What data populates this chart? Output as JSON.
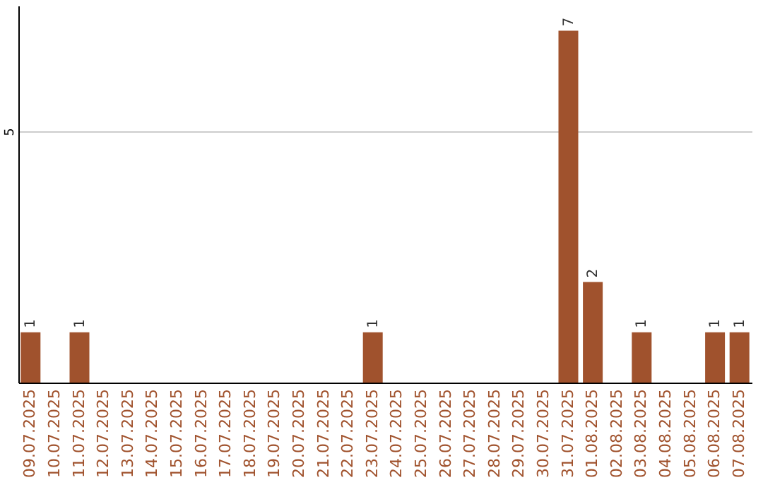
{
  "chart_data": {
    "type": "bar",
    "categories": [
      "09.07.2025",
      "10.07.2025",
      "11.07.2025",
      "12.07.2025",
      "13.07.2025",
      "14.07.2025",
      "15.07.2025",
      "16.07.2025",
      "17.07.2025",
      "18.07.2025",
      "19.07.2025",
      "20.07.2025",
      "21.07.2025",
      "22.07.2025",
      "23.07.2025",
      "24.07.2025",
      "25.07.2025",
      "26.07.2025",
      "27.07.2025",
      "28.07.2025",
      "29.07.2025",
      "30.07.2025",
      "31.07.2025",
      "01.08.2025",
      "02.08.2025",
      "03.08.2025",
      "04.08.2025",
      "05.08.2025",
      "06.08.2025",
      "07.08.2025"
    ],
    "values": [
      1,
      0,
      1,
      0,
      0,
      0,
      0,
      0,
      0,
      0,
      0,
      0,
      0,
      0,
      1,
      0,
      0,
      0,
      0,
      0,
      0,
      0,
      7,
      2,
      0,
      1,
      0,
      0,
      1,
      1
    ],
    "value_labels": [
      "1",
      null,
      "1",
      null,
      null,
      null,
      null,
      null,
      null,
      null,
      null,
      null,
      null,
      null,
      "1",
      null,
      null,
      null,
      null,
      null,
      null,
      null,
      "7",
      "2",
      null,
      "1",
      null,
      null,
      "1",
      "1"
    ],
    "color": "#a0522d",
    "ylim": [
      0,
      7.5
    ],
    "yticks": [
      5
    ],
    "grid": "y"
  }
}
